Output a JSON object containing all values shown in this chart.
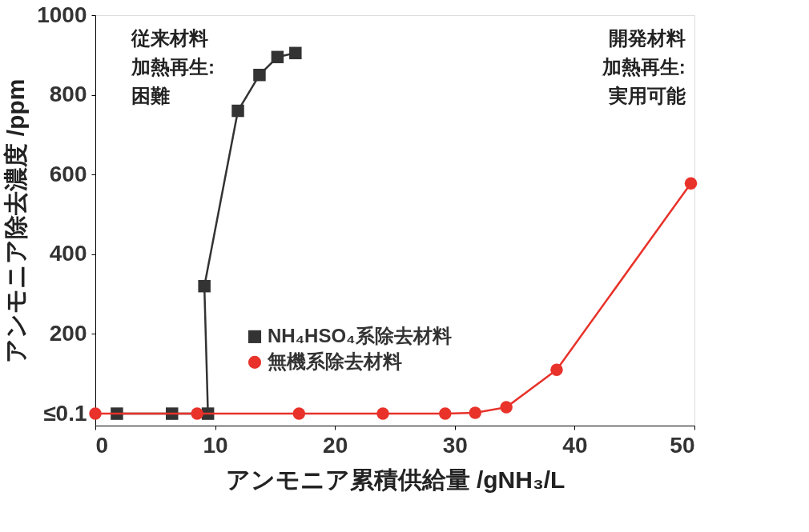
{
  "chart_data": {
    "type": "line",
    "xlabel": "アンモニア累積供給量 /gNH₃/L",
    "ylabel": "アンモニア除去濃度 /ppm",
    "xlim": [
      0,
      50
    ],
    "xticks": [
      0,
      10,
      20,
      30,
      40,
      50
    ],
    "ylim": [
      -30,
      1000
    ],
    "yticks": [
      {
        "value": 0,
        "label": "≤0.1"
      },
      200,
      400,
      600,
      800,
      1000
    ],
    "grid": false,
    "legend": "bottom",
    "series": [
      {
        "name": "NH₄HSO₄系除去材料",
        "color": "#333333",
        "marker": "square",
        "line_style": "solid",
        "x": [
          1.8,
          6.4,
          9.4,
          9.1,
          11.9,
          13.7,
          15.2,
          16.7
        ],
        "values": [
          0,
          0,
          0,
          320,
          760,
          850,
          895,
          905
        ]
      },
      {
        "name": "無機系除去材料",
        "color": "#e8322a",
        "marker": "circle",
        "line_style": "solid",
        "x": [
          0,
          8.5,
          17,
          24,
          29.2,
          31.7,
          34.3,
          38.5,
          49.7
        ],
        "values": [
          0,
          0,
          0,
          0,
          0,
          2,
          16,
          110,
          578
        ]
      }
    ],
    "annotations": [
      "従来材料",
      "加熱再生:",
      "困難",
      "開発材料",
      "加熱再生:",
      "実用可能"
    ]
  }
}
